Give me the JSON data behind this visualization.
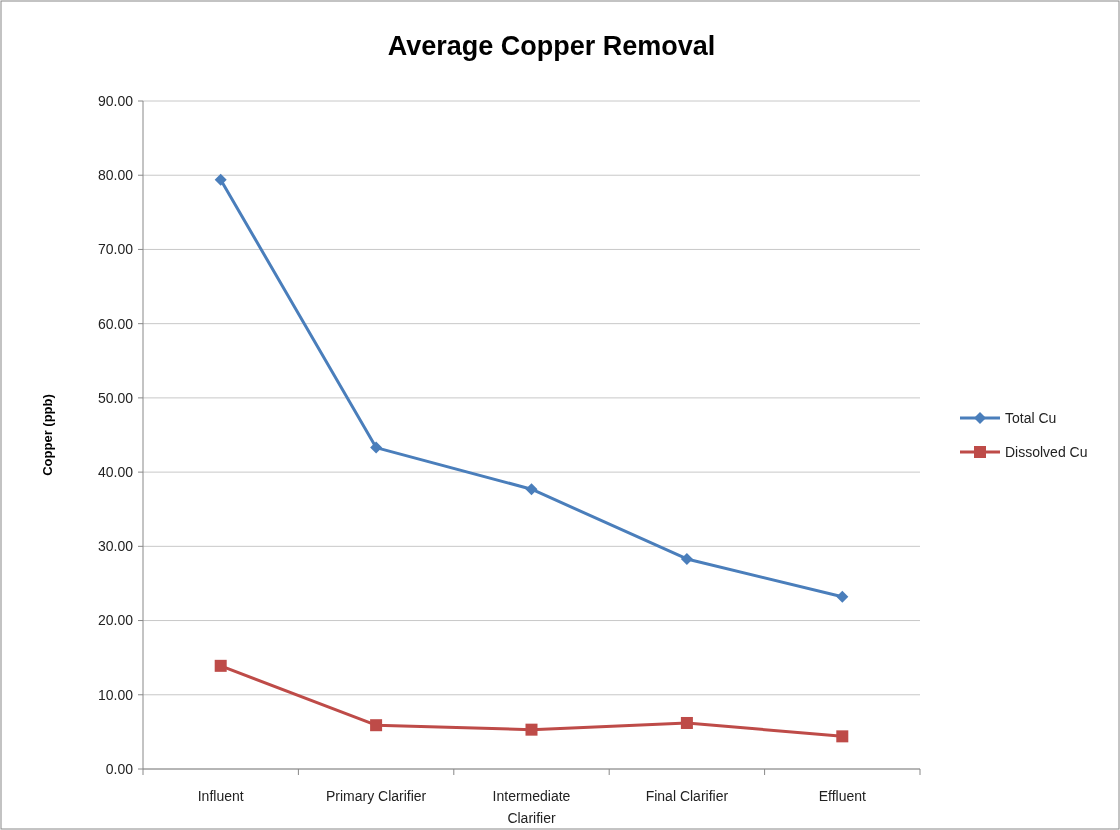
{
  "chart_data": {
    "type": "line",
    "title": "Average Copper Removal",
    "ylabel": "Copper (ppb)",
    "categories": [
      "Influent",
      "Primary Clarifier",
      "Intermediate Clarifier",
      "Final Clarifier",
      "Effluent"
    ],
    "series": [
      {
        "name": "Total Cu",
        "color": "#4a7ebb",
        "marker": "diamond",
        "values": [
          79.4,
          43.3,
          37.7,
          28.3,
          23.2
        ]
      },
      {
        "name": "Dissolved Cu",
        "color": "#be4b48",
        "marker": "square",
        "values": [
          13.9,
          5.9,
          5.3,
          6.2,
          4.4
        ]
      }
    ],
    "ylim": [
      0,
      90
    ],
    "yticks": [
      {
        "value": 0,
        "label": "0.00"
      },
      {
        "value": 10,
        "label": "10.00"
      },
      {
        "value": 20,
        "label": "20.00"
      },
      {
        "value": 30,
        "label": "30.00"
      },
      {
        "value": 40,
        "label": "40.00"
      },
      {
        "value": 50,
        "label": "50.00"
      },
      {
        "value": 60,
        "label": "60.00"
      },
      {
        "value": 70,
        "label": "70.00"
      },
      {
        "value": 80,
        "label": "80.00"
      },
      {
        "value": 90,
        "label": "90.00"
      }
    ],
    "grid": "y",
    "legend": "right",
    "line_style": "solid"
  }
}
